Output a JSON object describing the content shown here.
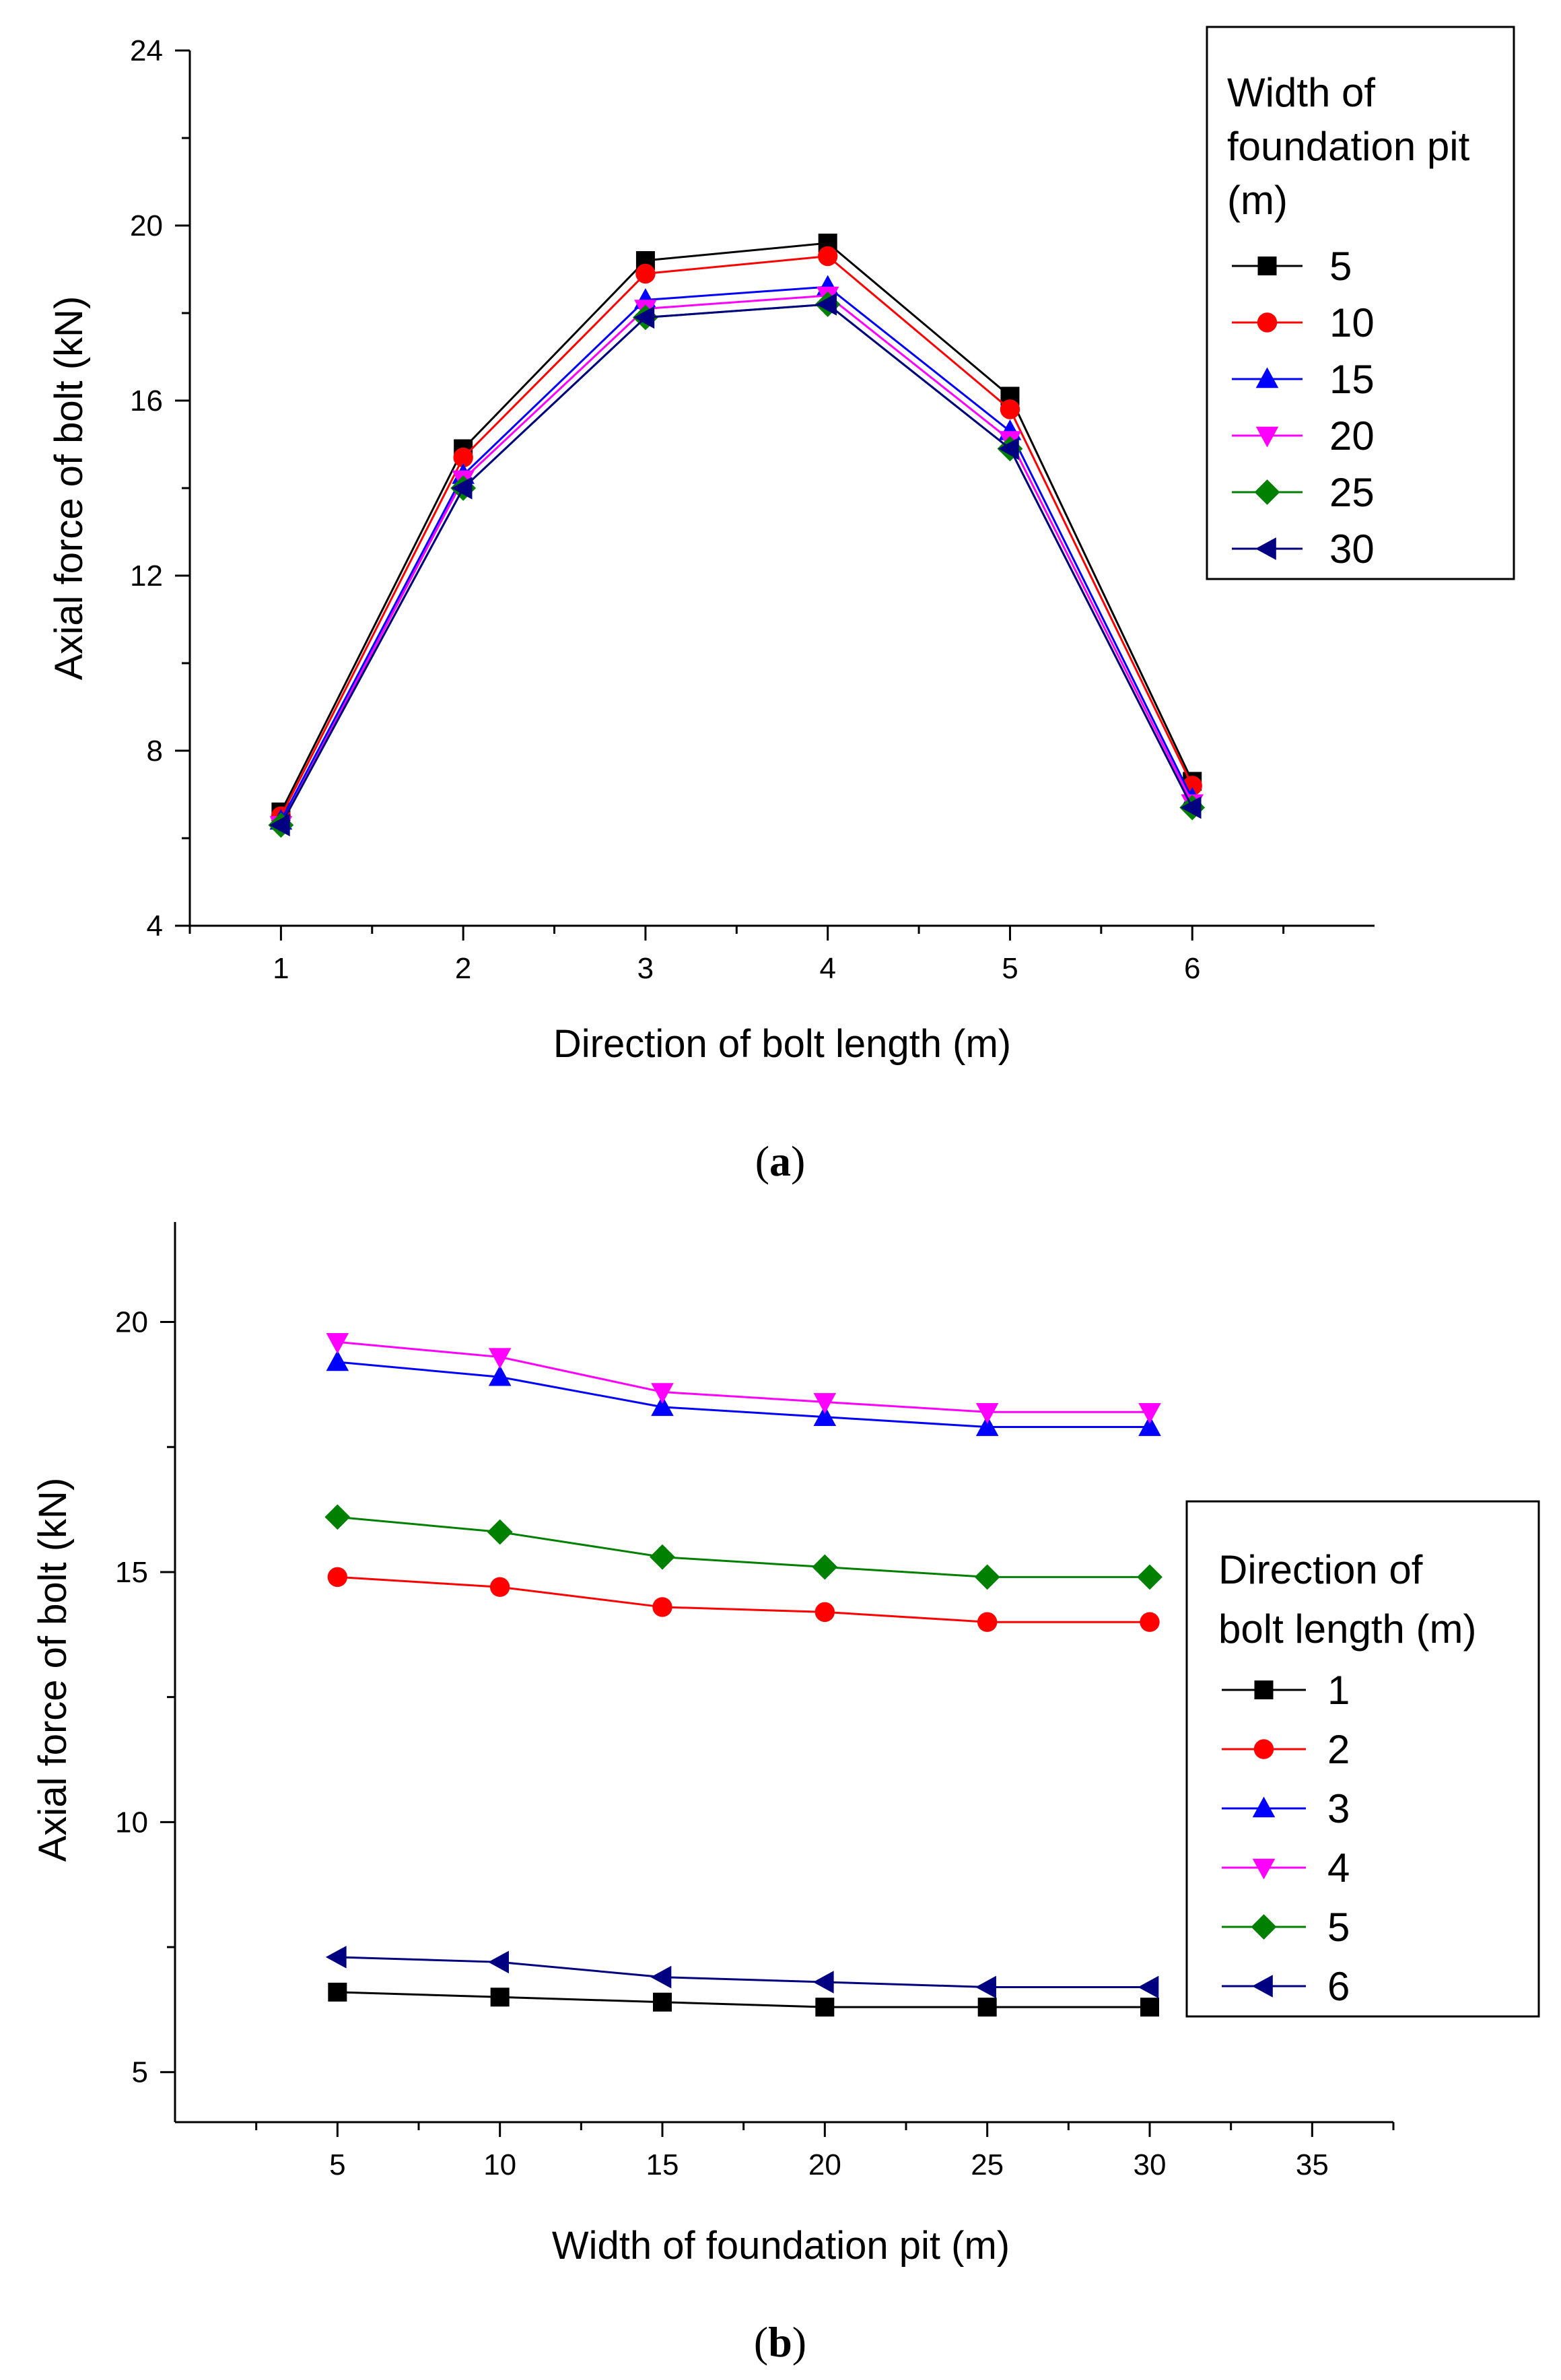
{
  "chart_data": [
    {
      "type": "line",
      "panel": "a",
      "caption": "(a)",
      "caption_letter": "a",
      "xlabel": "Direction of bolt length (m)",
      "ylabel": "Axial force of bolt (kN)",
      "xlim": [
        0.5,
        7.0
      ],
      "ylim": [
        4,
        24
      ],
      "xticks": [
        1,
        2,
        3,
        4,
        5,
        6
      ],
      "yticks": [
        4,
        8,
        12,
        16,
        20,
        24
      ],
      "legend_title": [
        "Width of",
        "foundation pit",
        "(m)"
      ],
      "x": [
        1,
        2,
        3,
        4,
        5,
        6
      ],
      "series": [
        {
          "name": "5",
          "color": "#000000",
          "marker": "square",
          "values": [
            6.6,
            14.9,
            19.2,
            19.6,
            16.1,
            7.3
          ]
        },
        {
          "name": "10",
          "color": "#ff0000",
          "marker": "circle",
          "values": [
            6.5,
            14.7,
            18.9,
            19.3,
            15.8,
            7.2
          ]
        },
        {
          "name": "15",
          "color": "#0000ff",
          "marker": "triangle-up",
          "values": [
            6.4,
            14.3,
            18.3,
            18.6,
            15.3,
            6.9
          ]
        },
        {
          "name": "20",
          "color": "#ff00ff",
          "marker": "triangle-down",
          "values": [
            6.3,
            14.2,
            18.1,
            18.4,
            15.1,
            6.8
          ]
        },
        {
          "name": "25",
          "color": "#008000",
          "marker": "diamond",
          "values": [
            6.3,
            14.0,
            17.9,
            18.2,
            14.9,
            6.7
          ]
        },
        {
          "name": "30",
          "color": "#000080",
          "marker": "triangle-left",
          "values": [
            6.3,
            14.0,
            17.9,
            18.2,
            14.9,
            6.7
          ]
        }
      ]
    },
    {
      "type": "line",
      "panel": "b",
      "caption": "(b)",
      "caption_letter": "b",
      "xlabel": "Width of foundation pit (m)",
      "ylabel": "Axial force of bolt (kN)",
      "xlim": [
        0,
        37.5
      ],
      "ylim": [
        4,
        22
      ],
      "xticks": [
        5,
        10,
        15,
        20,
        25,
        30,
        35
      ],
      "yticks": [
        5,
        10,
        15,
        20
      ],
      "legend_title": [
        "Direction of",
        "bolt length (m)"
      ],
      "x": [
        5,
        10,
        15,
        20,
        25,
        30
      ],
      "series": [
        {
          "name": "1",
          "color": "#000000",
          "marker": "square",
          "values": [
            6.6,
            6.5,
            6.4,
            6.3,
            6.3,
            6.3
          ]
        },
        {
          "name": "2",
          "color": "#ff0000",
          "marker": "circle",
          "values": [
            14.9,
            14.7,
            14.3,
            14.2,
            14.0,
            14.0
          ]
        },
        {
          "name": "3",
          "color": "#0000ff",
          "marker": "triangle-up",
          "values": [
            19.2,
            18.9,
            18.3,
            18.1,
            17.9,
            17.9
          ]
        },
        {
          "name": "4",
          "color": "#ff00ff",
          "marker": "triangle-down",
          "values": [
            19.6,
            19.3,
            18.6,
            18.4,
            18.2,
            18.2
          ]
        },
        {
          "name": "5",
          "color": "#008000",
          "marker": "diamond",
          "values": [
            16.1,
            15.8,
            15.3,
            15.1,
            14.9,
            14.9
          ]
        },
        {
          "name": "6",
          "color": "#000080",
          "marker": "triangle-left",
          "values": [
            7.3,
            7.2,
            6.9,
            6.8,
            6.7,
            6.7
          ]
        }
      ]
    }
  ]
}
